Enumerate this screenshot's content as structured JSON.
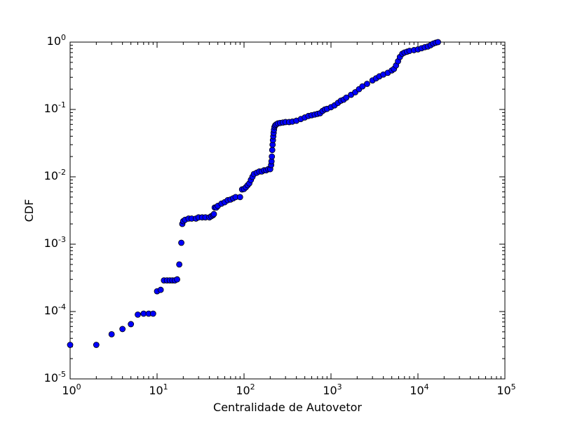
{
  "chart_data": {
    "type": "scatter",
    "title": "",
    "xlabel": "Centralidade de Autovetor",
    "ylabel": "CDF",
    "x_scale": "log",
    "y_scale": "log",
    "xlim": [
      1,
      100000
    ],
    "ylim": [
      1e-05,
      1
    ],
    "grid": false,
    "legend": "none",
    "x_ticks": [
      {
        "base": "10",
        "exp": "0"
      },
      {
        "base": "10",
        "exp": "1"
      },
      {
        "base": "10",
        "exp": "2"
      },
      {
        "base": "10",
        "exp": "3"
      },
      {
        "base": "10",
        "exp": "4"
      },
      {
        "base": "10",
        "exp": "5"
      }
    ],
    "y_ticks": [
      {
        "base": "10",
        "exp": "-5"
      },
      {
        "base": "10",
        "exp": "-4"
      },
      {
        "base": "10",
        "exp": "-3"
      },
      {
        "base": "10",
        "exp": "-2"
      },
      {
        "base": "10",
        "exp": "-1"
      },
      {
        "base": "10",
        "exp": "0"
      }
    ],
    "colors": {
      "marker_fill": "#0000ff",
      "marker_edge": "#000000",
      "axes": "#000000"
    },
    "series": [
      {
        "points": [
          [
            1,
            3.2e-05
          ],
          [
            2,
            3.2e-05
          ],
          [
            3,
            4.6e-05
          ],
          [
            4,
            5.5e-05
          ],
          [
            5,
            6.5e-05
          ],
          [
            6,
            9e-05
          ],
          [
            7,
            9.3e-05
          ],
          [
            8,
            9.3e-05
          ],
          [
            9,
            9.3e-05
          ],
          [
            10,
            0.0002
          ],
          [
            11,
            0.00021
          ],
          [
            12,
            0.00029
          ],
          [
            13,
            0.00029
          ],
          [
            14,
            0.00029
          ],
          [
            15,
            0.00029
          ],
          [
            16,
            0.00029
          ],
          [
            17,
            0.0003
          ],
          [
            18,
            0.0005
          ],
          [
            19,
            0.00105
          ],
          [
            19.5,
            0.002
          ],
          [
            20,
            0.0022
          ],
          [
            21,
            0.0023
          ],
          [
            23,
            0.0024
          ],
          [
            25,
            0.0024
          ],
          [
            28,
            0.0024
          ],
          [
            30,
            0.0025
          ],
          [
            33,
            0.0025
          ],
          [
            36,
            0.0025
          ],
          [
            40,
            0.0025
          ],
          [
            42,
            0.0026
          ],
          [
            44,
            0.0027
          ],
          [
            45,
            0.0028
          ],
          [
            46,
            0.0035
          ],
          [
            48,
            0.0035
          ],
          [
            50,
            0.0037
          ],
          [
            55,
            0.004
          ],
          [
            60,
            0.0042
          ],
          [
            65,
            0.0045
          ],
          [
            70,
            0.0046
          ],
          [
            75,
            0.0048
          ],
          [
            80,
            0.005
          ],
          [
            90,
            0.005
          ],
          [
            95,
            0.0065
          ],
          [
            100,
            0.0066
          ],
          [
            105,
            0.007
          ],
          [
            110,
            0.0075
          ],
          [
            115,
            0.008
          ],
          [
            120,
            0.009
          ],
          [
            125,
            0.01
          ],
          [
            130,
            0.011
          ],
          [
            140,
            0.0115
          ],
          [
            150,
            0.012
          ],
          [
            160,
            0.012
          ],
          [
            170,
            0.0125
          ],
          [
            180,
            0.0125
          ],
          [
            190,
            0.013
          ],
          [
            200,
            0.013
          ],
          [
            205,
            0.015
          ],
          [
            207,
            0.017
          ],
          [
            209,
            0.02
          ],
          [
            211,
            0.025
          ],
          [
            213,
            0.03
          ],
          [
            215,
            0.035
          ],
          [
            217,
            0.04
          ],
          [
            219,
            0.045
          ],
          [
            221,
            0.05
          ],
          [
            224,
            0.055
          ],
          [
            228,
            0.058
          ],
          [
            235,
            0.06
          ],
          [
            245,
            0.062
          ],
          [
            260,
            0.063
          ],
          [
            280,
            0.064
          ],
          [
            300,
            0.065
          ],
          [
            330,
            0.065
          ],
          [
            360,
            0.066
          ],
          [
            400,
            0.068
          ],
          [
            450,
            0.072
          ],
          [
            500,
            0.076
          ],
          [
            550,
            0.08
          ],
          [
            600,
            0.082
          ],
          [
            650,
            0.084
          ],
          [
            700,
            0.086
          ],
          [
            750,
            0.088
          ],
          [
            800,
            0.095
          ],
          [
            850,
            0.1
          ],
          [
            900,
            0.102
          ],
          [
            1000,
            0.108
          ],
          [
            1100,
            0.115
          ],
          [
            1200,
            0.125
          ],
          [
            1300,
            0.135
          ],
          [
            1400,
            0.14
          ],
          [
            1500,
            0.15
          ],
          [
            1700,
            0.165
          ],
          [
            1900,
            0.18
          ],
          [
            2100,
            0.2
          ],
          [
            2300,
            0.22
          ],
          [
            2600,
            0.24
          ],
          [
            3000,
            0.27
          ],
          [
            3300,
            0.29
          ],
          [
            3600,
            0.31
          ],
          [
            4000,
            0.33
          ],
          [
            4500,
            0.35
          ],
          [
            5000,
            0.38
          ],
          [
            5300,
            0.4
          ],
          [
            5600,
            0.45
          ],
          [
            5900,
            0.52
          ],
          [
            6200,
            0.6
          ],
          [
            6600,
            0.67
          ],
          [
            7000,
            0.7
          ],
          [
            7500,
            0.72
          ],
          [
            8000,
            0.74
          ],
          [
            9000,
            0.76
          ],
          [
            10000,
            0.78
          ],
          [
            11000,
            0.81
          ],
          [
            12000,
            0.84
          ],
          [
            13000,
            0.86
          ],
          [
            14000,
            0.9
          ],
          [
            15000,
            0.95
          ],
          [
            16000,
            0.98
          ],
          [
            17000,
            1.0
          ]
        ]
      }
    ]
  }
}
